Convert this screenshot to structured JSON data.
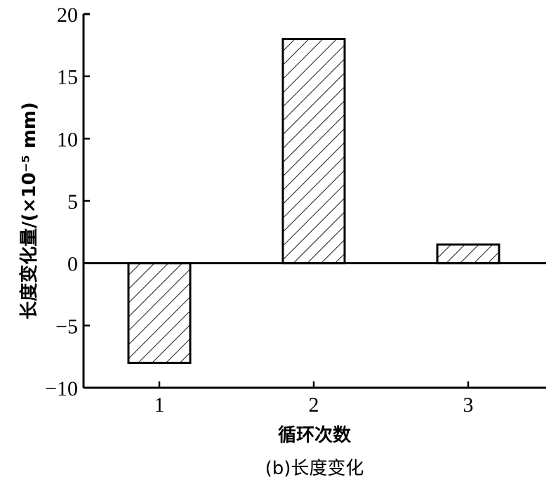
{
  "chart_data": {
    "type": "bar",
    "title": "(b)长度变化",
    "xlabel": "循环次数",
    "ylabel": "长度变化量/(×10⁻⁵ mm)",
    "categories": [
      "1",
      "2",
      "3"
    ],
    "values": [
      -8,
      18,
      1.5
    ],
    "ylim": [
      -10,
      20
    ],
    "yticks": [
      -10,
      -5,
      0,
      5,
      10,
      15,
      20
    ],
    "ytick_labels": [
      "−10",
      "−5",
      "0",
      "5",
      "10",
      "15",
      "20"
    ],
    "grid": false,
    "bar_fill": "diagonal-hatch",
    "colors": {
      "stroke": "#000000",
      "fill": "#ffffff"
    }
  }
}
